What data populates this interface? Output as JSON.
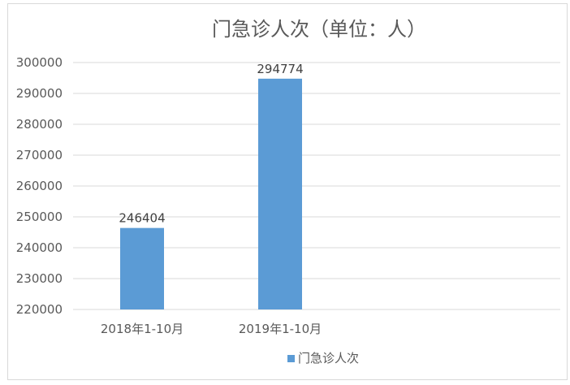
{
  "chart_data": {
    "type": "bar",
    "title": "门急诊人次（单位：人）",
    "categories": [
      "2018年1-10月",
      "2019年1-10月"
    ],
    "series": [
      {
        "name": "门急诊人次",
        "values": [
          246404,
          294774
        ],
        "color": "#5b9bd5"
      }
    ],
    "data_labels": [
      "246404",
      "294774"
    ],
    "ylim": [
      220000,
      300000
    ],
    "yticks": [
      220000,
      230000,
      240000,
      250000,
      260000,
      270000,
      280000,
      290000,
      300000
    ],
    "ytick_labels": [
      "220000",
      "230000",
      "240000",
      "250000",
      "260000",
      "270000",
      "280000",
      "290000",
      "300000"
    ],
    "grid": true,
    "legend_position": "bottom"
  }
}
